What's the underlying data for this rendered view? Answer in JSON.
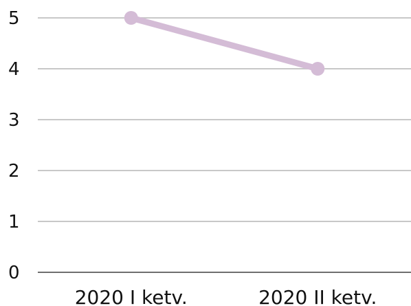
{
  "chart_data": {
    "type": "line",
    "title": "",
    "xlabel": "",
    "ylabel": "",
    "categories": [
      "2020 I ketv.",
      "2020 II ketv."
    ],
    "series": [
      {
        "values": [
          5,
          4
        ],
        "color": "#d4bcd6"
      }
    ],
    "ylim": [
      0,
      5
    ],
    "yticks": [
      "0",
      "1",
      "2",
      "3",
      "4",
      "5"
    ],
    "grid": true,
    "legend": "none",
    "colors": {
      "grid": "#c8c8c8",
      "axis": "#6e6e6e",
      "text": "#111111"
    }
  }
}
